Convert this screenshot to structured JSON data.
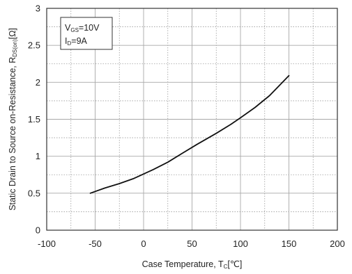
{
  "chart_data": {
    "type": "line",
    "xlabel": {
      "main": "Case Temperature, T",
      "sub": "C",
      "suffix": "[℃]"
    },
    "ylabel": {
      "main": "Static Drain to Source on-Resistance, R",
      "sub": "DS(on)",
      "suffix": "[Ω]"
    },
    "xlim": [
      -100,
      200
    ],
    "ylim": [
      0,
      3
    ],
    "xticks": [
      -100,
      -50,
      0,
      50,
      100,
      150,
      200
    ],
    "xtick_labels": [
      "-100",
      "-50",
      "0",
      "50",
      "100",
      "150",
      "200"
    ],
    "yticks": [
      0,
      0.5,
      1,
      1.5,
      2,
      2.5,
      3
    ],
    "ytick_labels": [
      "0",
      "0.5",
      "1",
      "1.5",
      "2",
      "2.5",
      "3"
    ],
    "grid": true,
    "annotation": [
      {
        "main": "V",
        "sub": "GS",
        "suffix": "=10V"
      },
      {
        "main": "I",
        "sub": "D",
        "suffix": "=9A"
      }
    ],
    "series": [
      {
        "color": "#111111",
        "x": [
          -55,
          -40,
          -25,
          -10,
          0,
          10,
          25,
          40,
          55,
          75,
          90,
          100,
          115,
          130,
          150
        ],
        "y": [
          0.5,
          0.57,
          0.63,
          0.7,
          0.76,
          0.82,
          0.92,
          1.04,
          1.16,
          1.31,
          1.43,
          1.52,
          1.66,
          1.82,
          2.09
        ]
      }
    ]
  }
}
